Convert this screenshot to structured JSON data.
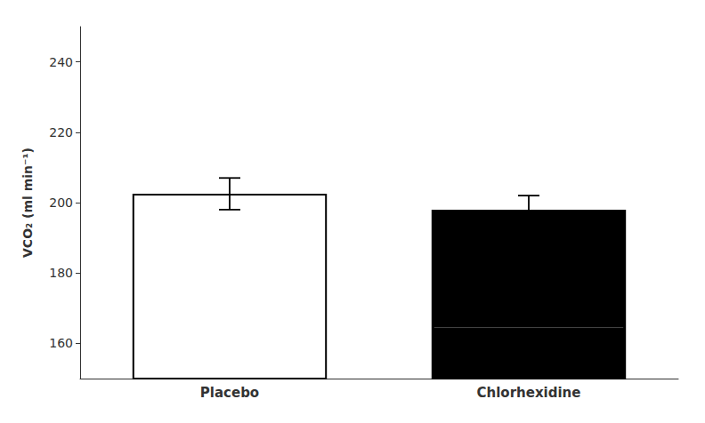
{
  "chart_data": {
    "type": "bar",
    "categories": [
      "Placebo",
      "Chlorhexidine"
    ],
    "values": [
      202.5,
      198.0
    ],
    "errors": [
      4.5,
      4.0
    ],
    "colors": [
      "#ffffff",
      "#000000"
    ],
    "ylabel": "VCO₂ (ml min⁻¹)",
    "ylim": [
      150,
      250
    ],
    "yticks": [
      160,
      180,
      200,
      220,
      240
    ],
    "grid": false,
    "inner_line": {
      "category": "Chlorhexidine",
      "value": 164.5,
      "color": "#666666"
    }
  }
}
